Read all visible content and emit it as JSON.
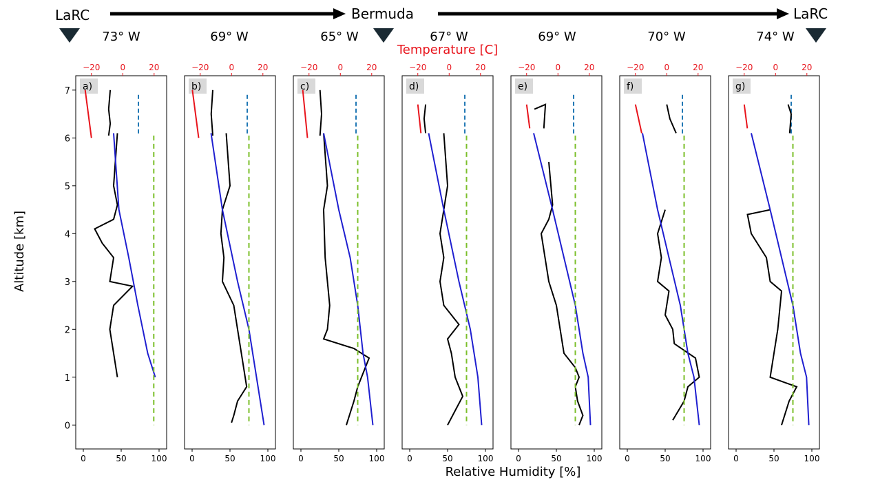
{
  "route": {
    "start_label": "LaRC",
    "mid_label": "Bermuda",
    "end_label": "LaRC",
    "longitudes": [
      "73° W",
      "69° W",
      "65° W",
      "67° W",
      "69° W",
      "70° W",
      "74° W"
    ]
  },
  "colors": {
    "temperature": "#e8141c",
    "humidity": "#000000",
    "blue_profile": "#1f1fd0",
    "green_dashed": "#7bbf2a",
    "blue_dashed": "#1f77b4",
    "marker": "#1a2a33"
  },
  "chart_data": {
    "type": "line",
    "top_axis_label": "Temperature [C]",
    "xlabel": "Relative Humidity [%]",
    "ylabel": "Altitude [km]",
    "temperature_xlim": [
      -30,
      28
    ],
    "temperature_ticks": [
      "−20",
      "0",
      "20"
    ],
    "rh_xlim": [
      -10,
      110
    ],
    "rh_ticks": [
      "0",
      "50",
      "100"
    ],
    "ylim": [
      -0.5,
      7.3
    ],
    "yticks": [
      "0",
      "1",
      "2",
      "3",
      "4",
      "5",
      "6",
      "7"
    ],
    "grid": false,
    "panels": [
      {
        "label": "a)",
        "longitude": "73° W",
        "temperature_profile": [
          [
            -24,
            7.0
          ],
          [
            -20,
            6.0
          ]
        ],
        "humidity_top": [
          [
            -8,
            7.0
          ],
          [
            -9,
            6.6
          ],
          [
            -8,
            6.3
          ],
          [
            -9,
            6.05
          ]
        ],
        "blue_dashed_x": 10,
        "rh_profile": [
          [
            45,
            6.1
          ],
          [
            40,
            5.0
          ],
          [
            45,
            4.6
          ],
          [
            40,
            4.3
          ],
          [
            15,
            4.1
          ],
          [
            25,
            3.8
          ],
          [
            40,
            3.5
          ],
          [
            35,
            3.0
          ],
          [
            65,
            2.9
          ],
          [
            40,
            2.5
          ],
          [
            35,
            2.0
          ],
          [
            40,
            1.5
          ],
          [
            45,
            1.0
          ]
        ],
        "blue_profile": [
          [
            40,
            6.1
          ],
          [
            47,
            4.5
          ],
          [
            60,
            3.5
          ],
          [
            72,
            2.5
          ],
          [
            85,
            1.5
          ],
          [
            95,
            1.0
          ]
        ],
        "green_dashed_x": 93
      },
      {
        "label": "b)",
        "longitude": "69° W",
        "temperature_profile": [
          [
            -25,
            7.0
          ],
          [
            -21,
            6.0
          ]
        ],
        "humidity_top": [
          [
            -12,
            7.0
          ],
          [
            -13,
            6.5
          ],
          [
            -12,
            6.05
          ]
        ],
        "blue_dashed_x": 10,
        "rh_profile": [
          [
            45,
            6.1
          ],
          [
            50,
            5.0
          ],
          [
            40,
            4.5
          ],
          [
            38,
            4.0
          ],
          [
            42,
            3.5
          ],
          [
            40,
            3.0
          ],
          [
            55,
            2.5
          ],
          [
            60,
            2.0
          ],
          [
            65,
            1.5
          ],
          [
            70,
            1.0
          ],
          [
            72,
            0.8
          ],
          [
            60,
            0.5
          ],
          [
            55,
            0.2
          ],
          [
            52,
            0.05
          ]
        ],
        "blue_profile": [
          [
            25,
            6.1
          ],
          [
            40,
            4.5
          ],
          [
            60,
            3.0
          ],
          [
            75,
            2.0
          ],
          [
            85,
            1.0
          ],
          [
            95,
            0.0
          ]
        ],
        "green_dashed_x": 75
      },
      {
        "label": "c)",
        "longitude": "65° W",
        "temperature_profile": [
          [
            -24,
            7.0
          ],
          [
            -21,
            6.0
          ]
        ],
        "humidity_top": [
          [
            -13,
            7.0
          ],
          [
            -12,
            6.5
          ],
          [
            -13,
            6.05
          ]
        ],
        "blue_dashed_x": 10,
        "rh_profile": [
          [
            30,
            6.1
          ],
          [
            35,
            5.0
          ],
          [
            30,
            4.5
          ],
          [
            32,
            3.5
          ],
          [
            35,
            3.0
          ],
          [
            38,
            2.5
          ],
          [
            35,
            2.0
          ],
          [
            30,
            1.8
          ],
          [
            70,
            1.6
          ],
          [
            90,
            1.4
          ],
          [
            80,
            1.0
          ],
          [
            75,
            0.8
          ],
          [
            70,
            0.5
          ],
          [
            60,
            0.0
          ]
        ],
        "blue_profile": [
          [
            30,
            6.1
          ],
          [
            50,
            4.5
          ],
          [
            65,
            3.5
          ],
          [
            75,
            2.5
          ],
          [
            82,
            1.5
          ],
          [
            88,
            1.0
          ],
          [
            95,
            0.0
          ]
        ],
        "green_dashed_x": 75
      },
      {
        "label": "d)",
        "longitude": "67° W",
        "temperature_profile": [
          [
            -20,
            6.7
          ],
          [
            -18,
            6.1
          ]
        ],
        "humidity_top": [
          [
            -15,
            6.7
          ],
          [
            -16,
            6.4
          ],
          [
            -15,
            6.1
          ]
        ],
        "blue_dashed_x": 10,
        "rh_profile": [
          [
            45,
            6.1
          ],
          [
            50,
            5.0
          ],
          [
            45,
            4.5
          ],
          [
            40,
            4.0
          ],
          [
            45,
            3.5
          ],
          [
            40,
            3.0
          ],
          [
            45,
            2.5
          ],
          [
            65,
            2.1
          ],
          [
            50,
            1.8
          ],
          [
            55,
            1.5
          ],
          [
            60,
            1.0
          ],
          [
            70,
            0.6
          ],
          [
            60,
            0.3
          ],
          [
            50,
            0.0
          ]
        ],
        "blue_profile": [
          [
            25,
            6.1
          ],
          [
            45,
            4.5
          ],
          [
            65,
            3.0
          ],
          [
            80,
            2.0
          ],
          [
            90,
            1.0
          ],
          [
            95,
            0.0
          ]
        ],
        "green_dashed_x": 75
      },
      {
        "label": "e)",
        "longitude": "69° W",
        "temperature_profile": [
          [
            -20,
            6.7
          ],
          [
            -18,
            6.2
          ]
        ],
        "humidity_top": [
          [
            -15,
            6.6
          ],
          [
            -8,
            6.7
          ],
          [
            -9,
            6.2
          ]
        ],
        "blue_dashed_x": 10,
        "rh_profile": [
          [
            40,
            5.5
          ],
          [
            45,
            4.6
          ],
          [
            40,
            4.3
          ],
          [
            30,
            4.0
          ],
          [
            35,
            3.5
          ],
          [
            40,
            3.0
          ],
          [
            50,
            2.5
          ],
          [
            55,
            2.0
          ],
          [
            60,
            1.5
          ],
          [
            75,
            1.2
          ],
          [
            80,
            1.0
          ],
          [
            75,
            0.8
          ],
          [
            78,
            0.5
          ],
          [
            85,
            0.2
          ],
          [
            80,
            0.0
          ]
        ],
        "blue_profile": [
          [
            20,
            6.1
          ],
          [
            45,
            4.5
          ],
          [
            60,
            3.5
          ],
          [
            75,
            2.5
          ],
          [
            85,
            1.5
          ],
          [
            92,
            1.0
          ],
          [
            95,
            0.0
          ]
        ],
        "green_dashed_x": 75
      },
      {
        "label": "f)",
        "longitude": "70° W",
        "temperature_profile": [
          [
            -20,
            6.7
          ],
          [
            -16,
            6.1
          ]
        ],
        "humidity_top": [
          [
            0,
            6.7
          ],
          [
            2,
            6.4
          ],
          [
            6,
            6.1
          ]
        ],
        "blue_dashed_x": 10,
        "rh_profile": [
          [
            50,
            4.5
          ],
          [
            40,
            4.0
          ],
          [
            45,
            3.5
          ],
          [
            40,
            3.0
          ],
          [
            55,
            2.8
          ],
          [
            50,
            2.3
          ],
          [
            60,
            2.0
          ],
          [
            62,
            1.7
          ],
          [
            90,
            1.4
          ],
          [
            95,
            1.0
          ],
          [
            80,
            0.8
          ],
          [
            75,
            0.5
          ],
          [
            60,
            0.1
          ]
        ],
        "blue_profile": [
          [
            20,
            6.1
          ],
          [
            40,
            4.5
          ],
          [
            55,
            3.5
          ],
          [
            70,
            2.5
          ],
          [
            80,
            1.5
          ],
          [
            88,
            1.0
          ],
          [
            95,
            0.0
          ]
        ],
        "green_dashed_x": 75
      },
      {
        "label": "g)",
        "longitude": "74° W",
        "temperature_profile": [
          [
            -20,
            6.7
          ],
          [
            -18,
            6.2
          ]
        ],
        "humidity_top": [
          [
            8,
            6.7
          ],
          [
            10,
            6.5
          ],
          [
            9,
            6.1
          ]
        ],
        "blue_dashed_x": 10,
        "rh_profile": [
          [
            45,
            4.5
          ],
          [
            15,
            4.4
          ],
          [
            20,
            4.0
          ],
          [
            40,
            3.5
          ],
          [
            45,
            3.0
          ],
          [
            60,
            2.8
          ],
          [
            55,
            2.0
          ],
          [
            50,
            1.5
          ],
          [
            45,
            1.0
          ],
          [
            80,
            0.8
          ],
          [
            70,
            0.5
          ],
          [
            60,
            0.0
          ]
        ],
        "blue_profile": [
          [
            20,
            6.1
          ],
          [
            45,
            4.5
          ],
          [
            60,
            3.5
          ],
          [
            75,
            2.5
          ],
          [
            85,
            1.5
          ],
          [
            93,
            1.0
          ],
          [
            96,
            0.0
          ]
        ],
        "green_dashed_x": 75
      }
    ]
  }
}
